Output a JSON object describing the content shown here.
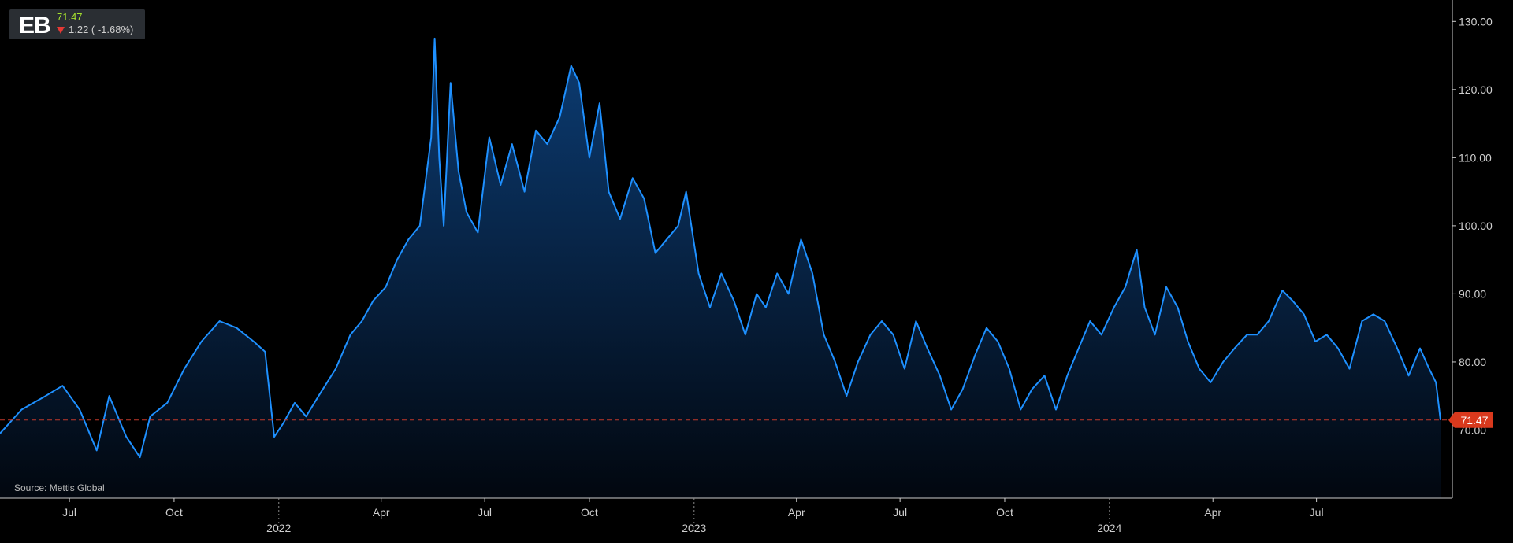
{
  "header": {
    "symbol": "EB",
    "price": "71.47",
    "change": "1.22 ( -1.68%)",
    "direction": "down"
  },
  "source_label": "Source: Mettis Global",
  "last_price_label": "71.47",
  "colors": {
    "background": "#000000",
    "line": "#1e90ff",
    "area_top": "#0c3d75",
    "area_bottom": "#02070f",
    "last_price_tag": "#d9391d",
    "reference_line": "#c0392b",
    "price_up": "#a6e22e",
    "price_down": "#e53935"
  },
  "chart_data": {
    "type": "area",
    "title": "",
    "xlabel": "",
    "ylabel": "",
    "ylim": [
      60,
      132
    ],
    "grid": false,
    "y_ticks": [
      "70.00",
      "80.00",
      "90.00",
      "100.00",
      "110.00",
      "120.00",
      "130.00"
    ],
    "x_ticks": [
      {
        "date": "2021-07-01",
        "label": "Jul"
      },
      {
        "date": "2021-10-01",
        "label": "Oct"
      },
      {
        "date": "2022-04-01",
        "label": "Apr"
      },
      {
        "date": "2022-07-01",
        "label": "Jul"
      },
      {
        "date": "2022-10-01",
        "label": "Oct"
      },
      {
        "date": "2023-04-01",
        "label": "Apr"
      },
      {
        "date": "2023-07-01",
        "label": "Jul"
      },
      {
        "date": "2023-10-01",
        "label": "Oct"
      },
      {
        "date": "2024-04-01",
        "label": "Apr"
      },
      {
        "date": "2024-07-01",
        "label": "Jul"
      }
    ],
    "year_ticks": [
      {
        "date": "2022-01-01",
        "label": "2022"
      },
      {
        "date": "2023-01-01",
        "label": "2023"
      },
      {
        "date": "2024-01-01",
        "label": "2024"
      }
    ],
    "reference_line": 71.47,
    "series": [
      {
        "values": [
          [
            "2021-05-01",
            69.5
          ],
          [
            "2021-05-20",
            73.0
          ],
          [
            "2021-06-10",
            75.0
          ],
          [
            "2021-06-25",
            76.5
          ],
          [
            "2021-07-10",
            73.0
          ],
          [
            "2021-07-25",
            67.0
          ],
          [
            "2021-08-05",
            75.0
          ],
          [
            "2021-08-20",
            69.0
          ],
          [
            "2021-09-01",
            66.0
          ],
          [
            "2021-09-10",
            72.0
          ],
          [
            "2021-09-25",
            74.0
          ],
          [
            "2021-10-10",
            79.0
          ],
          [
            "2021-10-25",
            83.0
          ],
          [
            "2021-11-10",
            86.0
          ],
          [
            "2021-11-25",
            85.0
          ],
          [
            "2021-12-10",
            83.0
          ],
          [
            "2021-12-20",
            81.5
          ],
          [
            "2021-12-28",
            69.0
          ],
          [
            "2022-01-05",
            71.0
          ],
          [
            "2022-01-15",
            74.0
          ],
          [
            "2022-01-25",
            72.0
          ],
          [
            "2022-02-05",
            75.0
          ],
          [
            "2022-02-20",
            79.0
          ],
          [
            "2022-03-05",
            84.0
          ],
          [
            "2022-03-15",
            86.0
          ],
          [
            "2022-03-25",
            89.0
          ],
          [
            "2022-04-05",
            91.0
          ],
          [
            "2022-04-15",
            95.0
          ],
          [
            "2022-04-25",
            98.0
          ],
          [
            "2022-05-05",
            100.0
          ],
          [
            "2022-05-15",
            113.0
          ],
          [
            "2022-05-18",
            127.5
          ],
          [
            "2022-05-22",
            110.0
          ],
          [
            "2022-05-26",
            100.0
          ],
          [
            "2022-06-01",
            121.0
          ],
          [
            "2022-06-08",
            108.0
          ],
          [
            "2022-06-15",
            102.0
          ],
          [
            "2022-06-25",
            99.0
          ],
          [
            "2022-07-05",
            113.0
          ],
          [
            "2022-07-15",
            106.0
          ],
          [
            "2022-07-25",
            112.0
          ],
          [
            "2022-08-05",
            105.0
          ],
          [
            "2022-08-15",
            114.0
          ],
          [
            "2022-08-25",
            112.0
          ],
          [
            "2022-09-05",
            116.0
          ],
          [
            "2022-09-15",
            123.5
          ],
          [
            "2022-09-22",
            121.0
          ],
          [
            "2022-10-01",
            110.0
          ],
          [
            "2022-10-10",
            118.0
          ],
          [
            "2022-10-18",
            105.0
          ],
          [
            "2022-10-28",
            101.0
          ],
          [
            "2022-11-08",
            107.0
          ],
          [
            "2022-11-18",
            104.0
          ],
          [
            "2022-11-28",
            96.0
          ],
          [
            "2022-12-08",
            98.0
          ],
          [
            "2022-12-18",
            100.0
          ],
          [
            "2022-12-25",
            105.0
          ],
          [
            "2023-01-05",
            93.0
          ],
          [
            "2023-01-15",
            88.0
          ],
          [
            "2023-01-25",
            93.0
          ],
          [
            "2023-02-05",
            89.0
          ],
          [
            "2023-02-15",
            84.0
          ],
          [
            "2023-02-25",
            90.0
          ],
          [
            "2023-03-05",
            88.0
          ],
          [
            "2023-03-15",
            93.0
          ],
          [
            "2023-03-25",
            90.0
          ],
          [
            "2023-04-05",
            98.0
          ],
          [
            "2023-04-15",
            93.0
          ],
          [
            "2023-04-25",
            84.0
          ],
          [
            "2023-05-05",
            80.0
          ],
          [
            "2023-05-15",
            75.0
          ],
          [
            "2023-05-25",
            80.0
          ],
          [
            "2023-06-05",
            84.0
          ],
          [
            "2023-06-15",
            86.0
          ],
          [
            "2023-06-25",
            84.0
          ],
          [
            "2023-07-05",
            79.0
          ],
          [
            "2023-07-15",
            86.0
          ],
          [
            "2023-07-25",
            82.0
          ],
          [
            "2023-08-05",
            78.0
          ],
          [
            "2023-08-15",
            73.0
          ],
          [
            "2023-08-25",
            76.0
          ],
          [
            "2023-09-05",
            81.0
          ],
          [
            "2023-09-15",
            85.0
          ],
          [
            "2023-09-25",
            83.0
          ],
          [
            "2023-10-05",
            79.0
          ],
          [
            "2023-10-15",
            73.0
          ],
          [
            "2023-10-25",
            76.0
          ],
          [
            "2023-11-05",
            78.0
          ],
          [
            "2023-11-15",
            73.0
          ],
          [
            "2023-11-25",
            78.0
          ],
          [
            "2023-12-05",
            82.0
          ],
          [
            "2023-12-15",
            86.0
          ],
          [
            "2023-12-25",
            84.0
          ],
          [
            "2024-01-05",
            88.0
          ],
          [
            "2024-01-15",
            91.0
          ],
          [
            "2024-01-25",
            96.5
          ],
          [
            "2024-02-01",
            88.0
          ],
          [
            "2024-02-10",
            84.0
          ],
          [
            "2024-02-20",
            91.0
          ],
          [
            "2024-03-01",
            88.0
          ],
          [
            "2024-03-10",
            83.0
          ],
          [
            "2024-03-20",
            79.0
          ],
          [
            "2024-03-30",
            77.0
          ],
          [
            "2024-04-10",
            80.0
          ],
          [
            "2024-04-20",
            82.0
          ],
          [
            "2024-05-01",
            84.0
          ],
          [
            "2024-05-10",
            84.0
          ],
          [
            "2024-05-20",
            86.0
          ],
          [
            "2024-06-01",
            90.5
          ],
          [
            "2024-06-10",
            89.0
          ],
          [
            "2024-06-20",
            87.0
          ],
          [
            "2024-06-30",
            83.0
          ],
          [
            "2024-07-10",
            84.0
          ],
          [
            "2024-07-20",
            82.0
          ],
          [
            "2024-07-30",
            79.0
          ],
          [
            "2024-08-10",
            86.0
          ],
          [
            "2024-08-20",
            87.0
          ],
          [
            "2024-08-30",
            86.0
          ],
          [
            "2024-09-10",
            82.0
          ],
          [
            "2024-09-20",
            78.0
          ],
          [
            "2024-09-30",
            82.0
          ],
          [
            "2024-10-08",
            79.0
          ],
          [
            "2024-10-14",
            77.0
          ],
          [
            "2024-10-18",
            71.47
          ]
        ]
      }
    ]
  }
}
